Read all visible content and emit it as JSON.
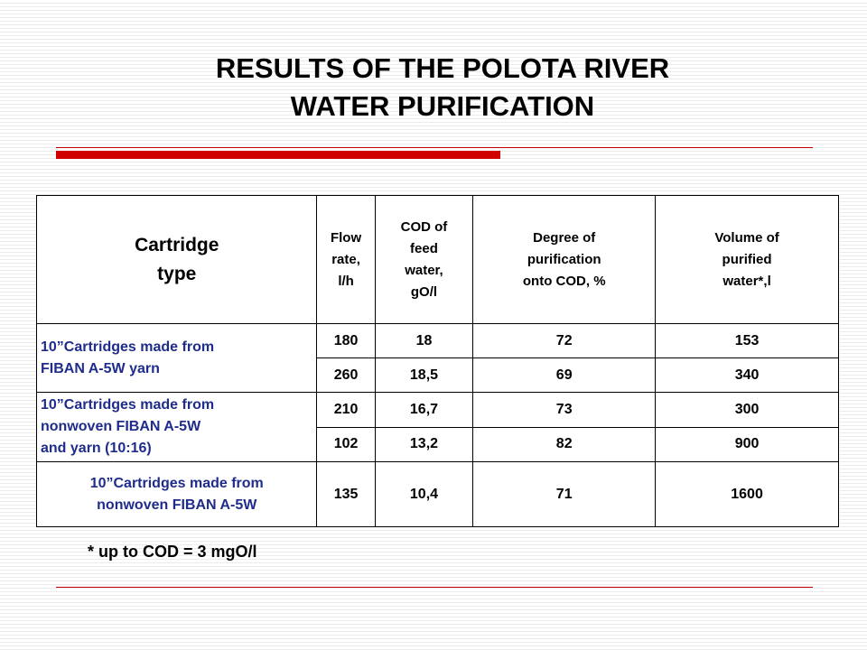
{
  "slide": {
    "title_line1": "RESULTS OF THE POLOTA RIVER",
    "title_line2": "WATER PURIFICATION",
    "footnote": "* up to COD = 3 mgO/l"
  },
  "table": {
    "headers": {
      "cartridge": [
        "Cartridge",
        "type"
      ],
      "flow": [
        "Flow",
        "rate,",
        "l/h"
      ],
      "cod": [
        "COD of",
        "feed",
        "water,",
        "gO/l"
      ],
      "degree": [
        "Degree of",
        "purification",
        "onto COD, %"
      ],
      "volume": [
        "Volume of",
        "purified",
        "water*,l"
      ]
    },
    "groups": [
      {
        "label_lines": [
          "10”Cartridges made from",
          "FIBAN A-5W yarn"
        ],
        "rows": [
          {
            "flow": "180",
            "cod": "18",
            "degree": "72",
            "volume": "153"
          },
          {
            "flow": "260",
            "cod": "18,5",
            "degree": "69",
            "volume": "340"
          }
        ]
      },
      {
        "label_lines": [
          "10”Cartridges made from",
          "nonwoven FIBAN A-5W",
          "and yarn (10:16)"
        ],
        "rows": [
          {
            "flow": "210",
            "cod": "16,7",
            "degree": "73",
            "volume": "300"
          },
          {
            "flow": "102",
            "cod": "13,2",
            "degree": "82",
            "volume": "900"
          }
        ]
      },
      {
        "label_lines": [
          "10”Cartridges made from",
          "nonwoven FIBAN A-5W"
        ],
        "rows": [
          {
            "flow": "135",
            "cod": "10,4",
            "degree": "71",
            "volume": "1600"
          }
        ]
      }
    ]
  },
  "colors": {
    "accent_red": "#d10000",
    "cartridge_text": "#1f2c8c",
    "background_stripe": "#ececec"
  }
}
